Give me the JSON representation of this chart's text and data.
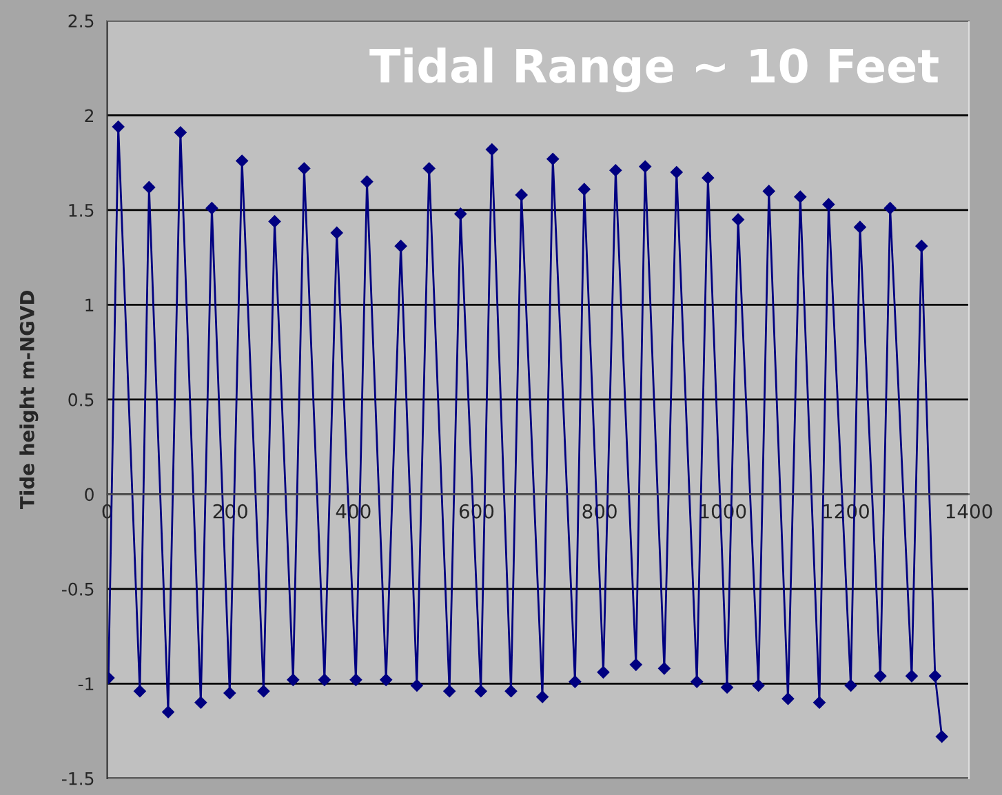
{
  "chart_data": {
    "type": "line",
    "title": "Tidal Range ~ 10 Feet",
    "ylabel": "Tide height m-NGVD",
    "x": [
      2,
      18,
      53,
      68,
      99,
      119,
      152,
      170,
      199,
      219,
      254,
      272,
      302,
      320,
      353,
      373,
      404,
      422,
      453,
      477,
      503,
      523,
      556,
      574,
      607,
      625,
      656,
      673,
      707,
      724,
      760,
      775,
      806,
      826,
      859,
      874,
      905,
      925,
      958,
      976,
      1007,
      1025,
      1058,
      1075,
      1106,
      1126,
      1157,
      1172,
      1208,
      1223,
      1256,
      1272,
      1307,
      1323,
      1345,
      1356
    ],
    "series": [
      {
        "color": "#000080",
        "values": [
          -0.97,
          1.94,
          -1.04,
          1.62,
          -1.15,
          1.91,
          -1.1,
          1.51,
          -1.05,
          1.76,
          -1.04,
          1.44,
          -0.98,
          1.72,
          -0.98,
          1.38,
          -0.98,
          1.65,
          -0.98,
          1.31,
          -1.01,
          1.72,
          -1.04,
          1.48,
          -1.04,
          1.82,
          -1.04,
          1.58,
          -1.07,
          1.77,
          -0.99,
          1.61,
          -0.94,
          1.71,
          -0.9,
          1.73,
          -0.92,
          1.7,
          -0.99,
          1.67,
          -1.02,
          1.45,
          -1.01,
          1.6,
          -1.08,
          1.57,
          -1.1,
          1.53,
          -1.01,
          1.41,
          -0.96,
          1.51,
          -0.96,
          1.31,
          -0.96,
          -1.28
        ]
      }
    ],
    "xlim": [
      0,
      1400
    ],
    "xticks": [
      0,
      200,
      400,
      600,
      800,
      1000,
      1200,
      1400
    ],
    "ylim": [
      -1.5,
      2.5
    ],
    "yticks": [
      -1.5,
      -1,
      -0.5,
      0,
      0.5,
      1,
      1.5,
      2,
      2.5
    ],
    "grid": "y",
    "marker": "diamond",
    "line_style": "solid",
    "legend": false
  }
}
